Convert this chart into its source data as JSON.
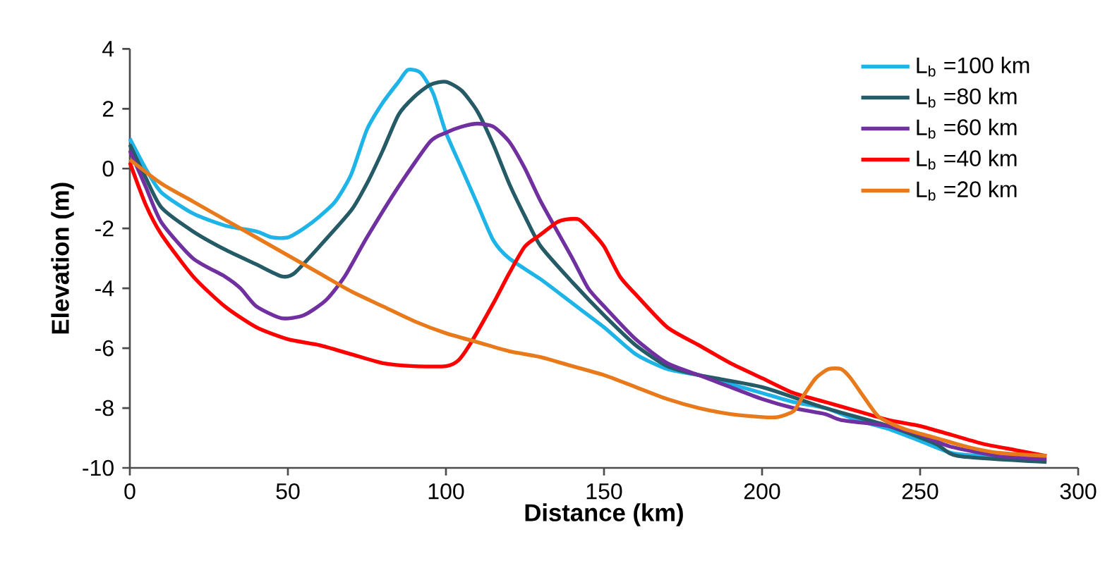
{
  "chart_data": {
    "type": "line",
    "xlabel": "Distance (km)",
    "ylabel": "Elevation (m)",
    "xlim": [
      0,
      300
    ],
    "ylim": [
      -10,
      4
    ],
    "xticks": [
      0,
      50,
      100,
      150,
      200,
      250,
      300
    ],
    "yticks": [
      -10,
      -8,
      -6,
      -4,
      -2,
      0,
      2,
      4
    ],
    "grid": false,
    "legend": "top right",
    "marker": "none",
    "line_style": "solid",
    "series": [
      {
        "name": "L$_{b}$ =100 km",
        "color": "#1fb4e8",
        "x": [
          0,
          5,
          10,
          20,
          30,
          40,
          45,
          50,
          55,
          60,
          65,
          70,
          75,
          80,
          85,
          88,
          92,
          96,
          100,
          105,
          110,
          115,
          120,
          130,
          140,
          150,
          160,
          170,
          180,
          190,
          200,
          210,
          220,
          230,
          240,
          250,
          260,
          270,
          290
        ],
        "values": [
          1.0,
          0.0,
          -0.8,
          -1.5,
          -1.9,
          -2.1,
          -2.3,
          -2.3,
          -2.0,
          -1.6,
          -1.1,
          -0.2,
          1.3,
          2.2,
          2.9,
          3.3,
          3.2,
          2.5,
          1.2,
          0.0,
          -1.2,
          -2.4,
          -3.0,
          -3.7,
          -4.5,
          -5.3,
          -6.2,
          -6.7,
          -6.9,
          -7.2,
          -7.5,
          -7.8,
          -8.0,
          -8.4,
          -8.7,
          -9.1,
          -9.5,
          -9.6,
          -9.7
        ]
      },
      {
        "name": "L$_{b}$ =80 km",
        "color": "#255b66",
        "x": [
          0,
          5,
          10,
          20,
          30,
          40,
          48,
          52,
          60,
          70,
          75,
          80,
          85,
          90,
          95,
          100,
          105,
          110,
          115,
          120,
          125,
          130,
          140,
          150,
          160,
          170,
          180,
          200,
          220,
          240,
          255,
          262,
          290
        ],
        "values": [
          0.8,
          -0.3,
          -1.3,
          -2.1,
          -2.7,
          -3.2,
          -3.6,
          -3.5,
          -2.6,
          -1.4,
          -0.5,
          0.6,
          1.8,
          2.4,
          2.8,
          2.9,
          2.6,
          1.9,
          0.8,
          -0.5,
          -1.6,
          -2.6,
          -3.8,
          -4.9,
          -5.9,
          -6.6,
          -6.9,
          -7.3,
          -8.0,
          -8.6,
          -9.2,
          -9.6,
          -9.8
        ]
      },
      {
        "name": "L$_{b}$ =60 km",
        "color": "#7030a0",
        "x": [
          0,
          5,
          10,
          20,
          30,
          35,
          40,
          48,
          55,
          62,
          68,
          75,
          85,
          95,
          100,
          105,
          110,
          115,
          120,
          125,
          130,
          140,
          145,
          150,
          160,
          170,
          180,
          190,
          200,
          210,
          220,
          225,
          240,
          250,
          260,
          275,
          290
        ],
        "values": [
          0.6,
          -0.6,
          -1.8,
          -3.0,
          -3.6,
          -4.0,
          -4.6,
          -5.0,
          -4.9,
          -4.4,
          -3.6,
          -2.3,
          -0.6,
          0.9,
          1.2,
          1.4,
          1.5,
          1.4,
          0.9,
          0.0,
          -1.1,
          -3.0,
          -4.0,
          -4.6,
          -5.7,
          -6.5,
          -6.9,
          -7.3,
          -7.7,
          -8.0,
          -8.2,
          -8.4,
          -8.6,
          -8.9,
          -9.3,
          -9.6,
          -9.7
        ]
      },
      {
        "name": "L$_{b}$ =40 km",
        "color": "#ff0000",
        "x": [
          0,
          5,
          10,
          20,
          30,
          40,
          50,
          60,
          70,
          80,
          90,
          100,
          104,
          108,
          115,
          120,
          125,
          130,
          135,
          138,
          142,
          146,
          150,
          155,
          160,
          170,
          180,
          190,
          200,
          210,
          220,
          230,
          240,
          250,
          260,
          270,
          280,
          290
        ],
        "values": [
          0.2,
          -1.2,
          -2.2,
          -3.6,
          -4.6,
          -5.3,
          -5.7,
          -5.9,
          -6.2,
          -6.5,
          -6.6,
          -6.6,
          -6.4,
          -5.8,
          -4.5,
          -3.5,
          -2.6,
          -2.2,
          -1.8,
          -1.7,
          -1.7,
          -2.1,
          -2.6,
          -3.6,
          -4.2,
          -5.3,
          -5.9,
          -6.5,
          -7.0,
          -7.5,
          -7.8,
          -8.1,
          -8.4,
          -8.6,
          -8.9,
          -9.2,
          -9.4,
          -9.6
        ]
      },
      {
        "name": "L$_{b}$ =20 km",
        "color": "#e97a1c",
        "x": [
          0,
          10,
          20,
          30,
          40,
          50,
          60,
          70,
          80,
          90,
          100,
          110,
          120,
          130,
          140,
          150,
          160,
          170,
          180,
          190,
          200,
          205,
          210,
          213,
          217,
          221,
          225,
          228,
          232,
          237,
          245,
          255,
          265,
          275,
          290
        ],
        "values": [
          0.3,
          -0.5,
          -1.1,
          -1.7,
          -2.3,
          -2.9,
          -3.5,
          -4.1,
          -4.6,
          -5.1,
          -5.5,
          -5.8,
          -6.1,
          -6.3,
          -6.6,
          -6.9,
          -7.3,
          -7.7,
          -8.0,
          -8.2,
          -8.3,
          -8.3,
          -8.1,
          -7.6,
          -7.0,
          -6.7,
          -6.7,
          -7.0,
          -7.6,
          -8.3,
          -8.7,
          -9.0,
          -9.3,
          -9.5,
          -9.6
        ]
      }
    ]
  }
}
